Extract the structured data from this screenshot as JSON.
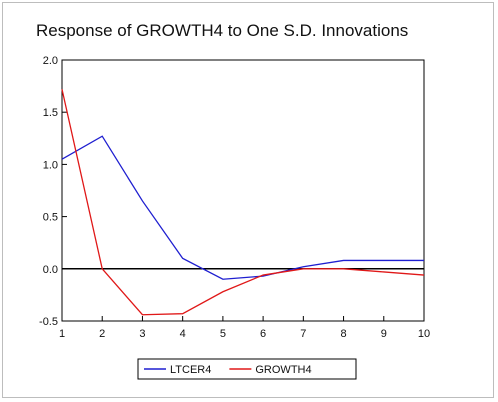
{
  "chart_data": {
    "type": "line",
    "title": "Response of GROWTH4 to One S.D. Innovations",
    "xlabel": "",
    "ylabel": "",
    "x": [
      1,
      2,
      3,
      4,
      5,
      6,
      7,
      8,
      9,
      10
    ],
    "x_ticks": [
      "1",
      "2",
      "3",
      "4",
      "5",
      "6",
      "7",
      "8",
      "9",
      "10"
    ],
    "ylim": [
      -0.5,
      2.0
    ],
    "y_ticks": [
      "2.0",
      "1.5",
      "1.0",
      "0.5",
      "0.0",
      "-0.5"
    ],
    "y_tick_values": [
      2.0,
      1.5,
      1.0,
      0.5,
      0.0,
      -0.5
    ],
    "zero_line": 0.0,
    "grid": false,
    "legend_position": "bottom",
    "series": [
      {
        "name": "LTCER4",
        "color": "#1f1fd0",
        "values": [
          1.05,
          1.27,
          0.65,
          0.1,
          -0.1,
          -0.07,
          0.02,
          0.08,
          0.08,
          0.08
        ]
      },
      {
        "name": "GROWTH4",
        "color": "#e01818",
        "values": [
          1.72,
          0.0,
          -0.44,
          -0.43,
          -0.22,
          -0.06,
          0.0,
          0.0,
          -0.03,
          -0.06
        ]
      }
    ]
  }
}
